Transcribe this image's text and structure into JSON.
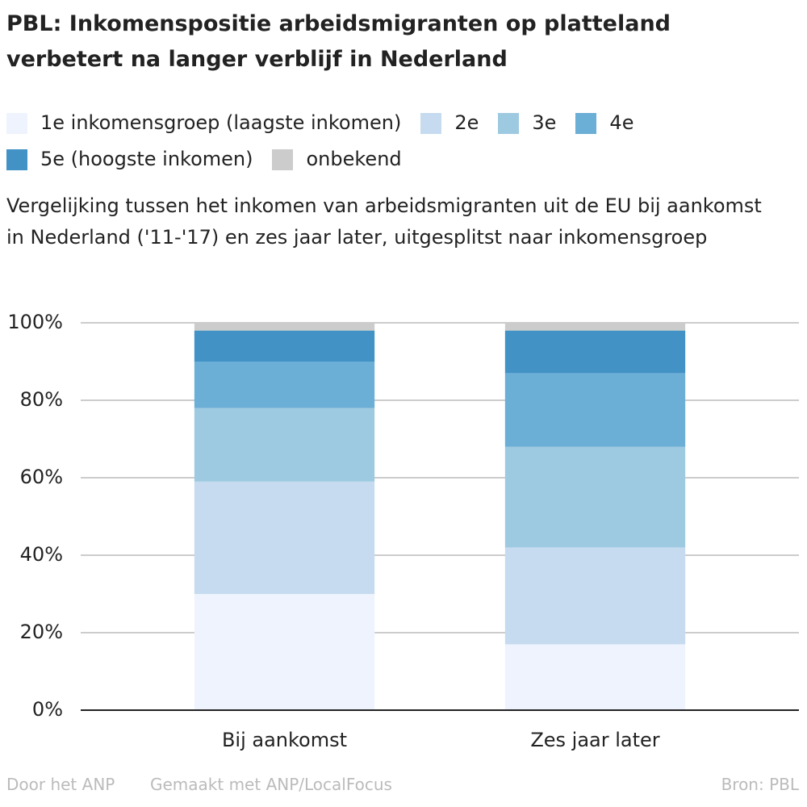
{
  "chart_data": {
    "type": "stacked_bar",
    "title": "PBL: Inkomenspositie arbeidsmigranten op platteland verbetert na langer verblijf in Nederland",
    "subtitle": "Vergelijking tussen het inkomen van arbeidsmigranten uit de EU bij aankomst in Nederland ('11-'17) en zes jaar later, uitgesplitst naar inkomensgroep",
    "categories": [
      "Bij aankomst",
      "Zes jaar later"
    ],
    "series": [
      {
        "name": "1e inkomensgroep (laagste inkomen)",
        "color": "#eef3fd",
        "values": [
          30,
          17
        ]
      },
      {
        "name": "2e",
        "color": "#c6dbef",
        "values": [
          29,
          25
        ]
      },
      {
        "name": "3e",
        "color": "#9ecae1",
        "values": [
          19,
          26
        ]
      },
      {
        "name": "4e",
        "color": "#6baed6",
        "values": [
          12,
          19
        ]
      },
      {
        "name": "5e (hoogste inkomen)",
        "color": "#4292c6",
        "values": [
          8,
          11
        ]
      },
      {
        "name": "onbekend",
        "color": "#cccccc",
        "values": [
          2,
          2
        ]
      }
    ],
    "ylim": [
      0,
      100
    ],
    "yticks": [
      {
        "value": 0,
        "label": "0%"
      },
      {
        "value": 20,
        "label": "20%"
      },
      {
        "value": 40,
        "label": "40%"
      },
      {
        "value": 60,
        "label": "60%"
      },
      {
        "value": 80,
        "label": "80%"
      },
      {
        "value": 100,
        "label": "100%"
      }
    ],
    "grid": true,
    "footer": {
      "left": "Door het ANP",
      "middle": "Gemaakt met ANP/LocalFocus",
      "right": "Bron:  PBL"
    }
  }
}
